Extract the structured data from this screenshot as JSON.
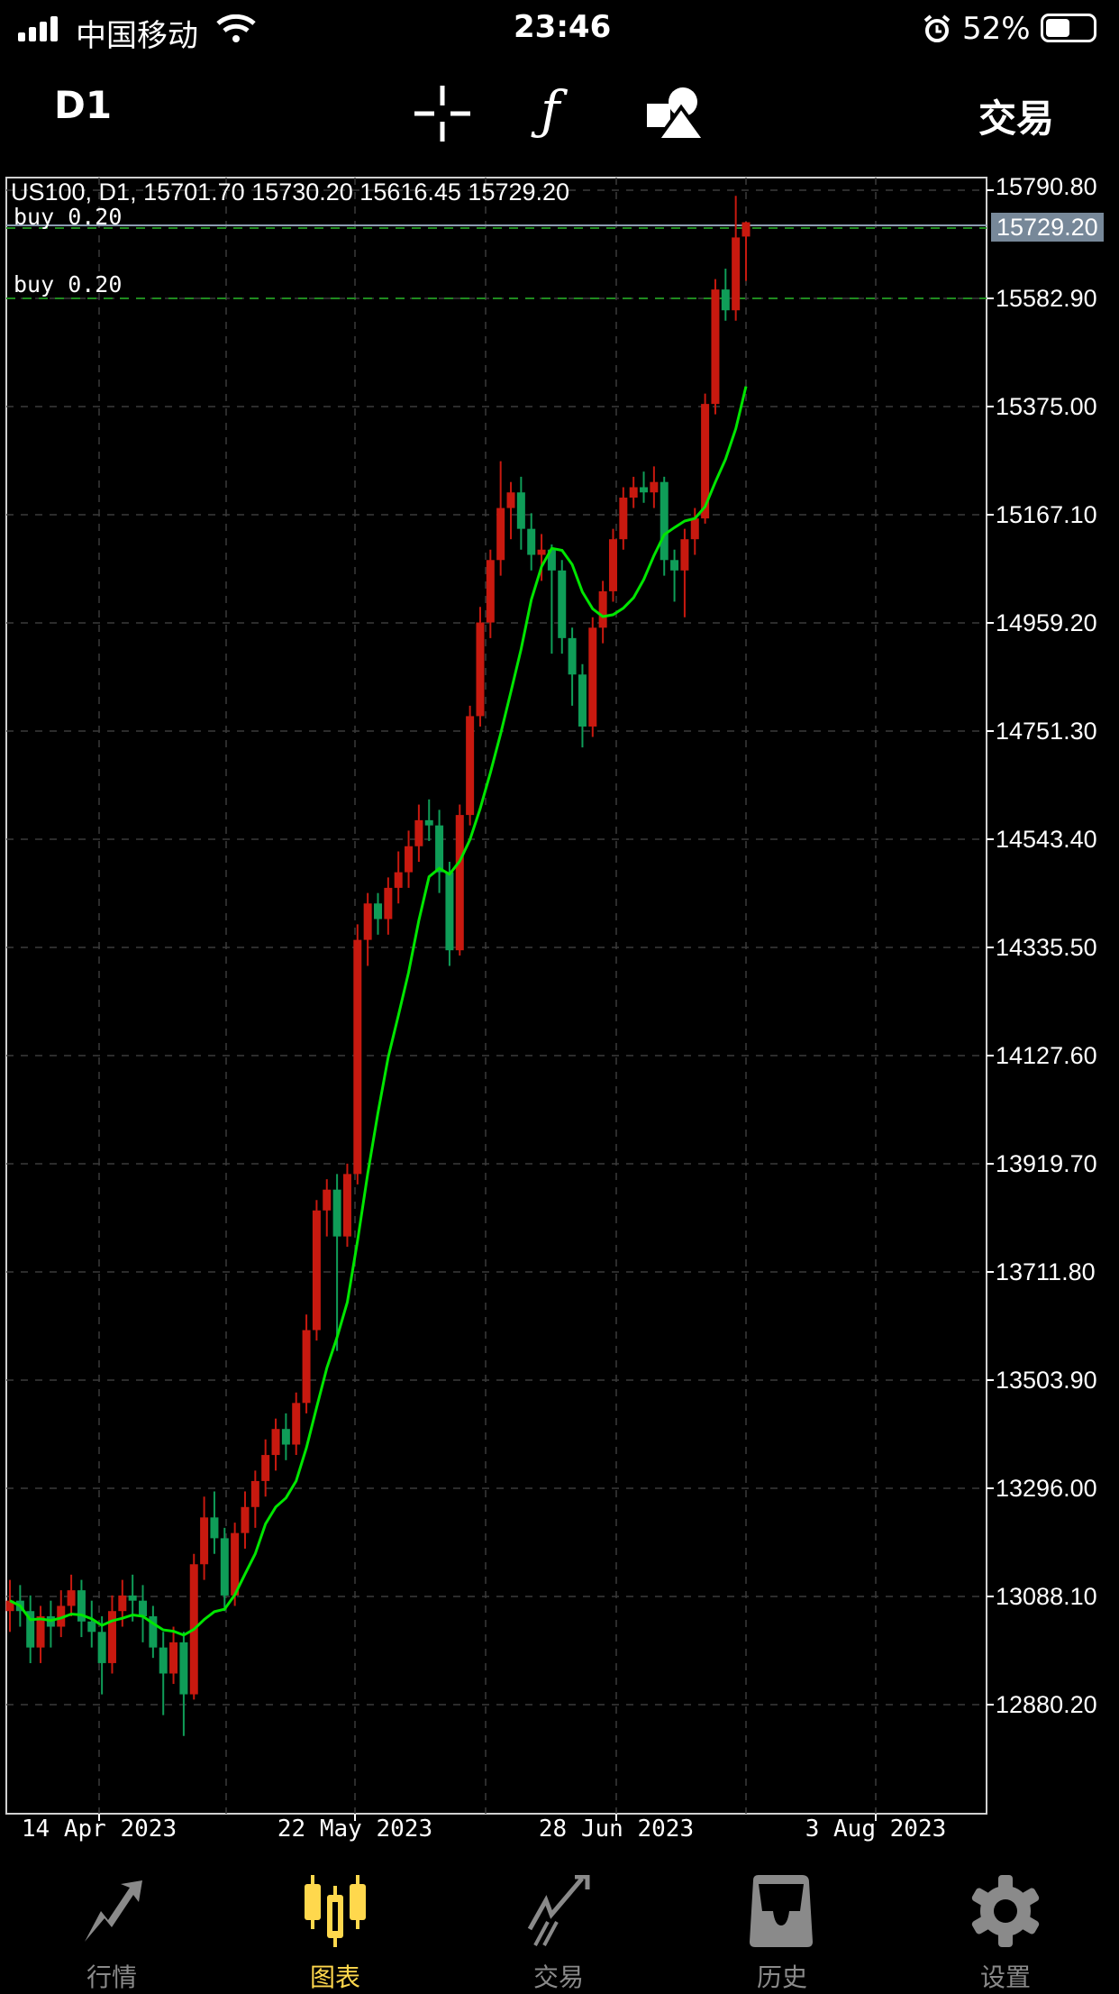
{
  "status_bar": {
    "carrier": "中国移动",
    "time": "23:46",
    "battery": "52%",
    "battery_level": 52
  },
  "toolbar": {
    "timeframe": "D1",
    "trade_label": "交易",
    "icons": [
      "crosshair-icon",
      "function-icon",
      "objects-icon"
    ]
  },
  "chart": {
    "info_line": "US100, D1, 15701.70 15730.20 15616.45 15729.20",
    "orders": [
      {
        "label": "buy 0.20",
        "price": 15729.2
      },
      {
        "label": "buy 0.20",
        "price": 15582.9
      }
    ],
    "current_price": "15729.20",
    "current_price_value": 15729.2,
    "price_ticks": [
      "15790.80",
      "15582.90",
      "15375.00",
      "15167.10",
      "14959.20",
      "14751.30",
      "14543.40",
      "14335.50",
      "14127.60",
      "13919.70",
      "13711.80",
      "13503.90",
      "13296.00",
      "13088.10",
      "12880.20"
    ],
    "date_ticks": [
      "14 Apr 2023",
      "22 May 2023",
      "28 Jun 2023",
      "3 Aug 2023"
    ],
    "colors": {
      "up": "#c8190f",
      "down": "#0f9d58",
      "ma": "#00e600",
      "grid": "#3a3a3a",
      "order_line": "#1f8a1f",
      "price_line": "#8c9bb0",
      "price_box": "#778899"
    },
    "candles": [
      [
        13060,
        13120,
        13020,
        13080
      ],
      [
        13080,
        13110,
        13030,
        13060
      ],
      [
        13060,
        13090,
        12960,
        12990
      ],
      [
        12990,
        13070,
        12960,
        13050
      ],
      [
        13050,
        13080,
        12990,
        13030
      ],
      [
        13030,
        13100,
        13010,
        13070
      ],
      [
        13070,
        13130,
        13050,
        13100
      ],
      [
        13100,
        13120,
        13010,
        13040
      ],
      [
        13040,
        13080,
        12990,
        13020
      ],
      [
        13020,
        13050,
        12900,
        12960
      ],
      [
        12960,
        13090,
        12940,
        13060
      ],
      [
        13060,
        13120,
        13030,
        13090
      ],
      [
        13090,
        13130,
        13040,
        13080
      ],
      [
        13080,
        13110,
        13000,
        13050
      ],
      [
        13050,
        13070,
        12970,
        12990
      ],
      [
        12990,
        13020,
        12860,
        12940
      ],
      [
        12940,
        13030,
        12920,
        13000
      ],
      [
        13000,
        13020,
        12820,
        12900
      ],
      [
        12900,
        13170,
        12890,
        13150
      ],
      [
        13150,
        13280,
        13120,
        13240
      ],
      [
        13240,
        13290,
        13170,
        13200
      ],
      [
        13200,
        13220,
        13060,
        13090
      ],
      [
        13090,
        13230,
        13070,
        13210
      ],
      [
        13210,
        13290,
        13180,
        13260
      ],
      [
        13260,
        13330,
        13220,
        13310
      ],
      [
        13310,
        13390,
        13280,
        13360
      ],
      [
        13360,
        13430,
        13330,
        13410
      ],
      [
        13410,
        13440,
        13350,
        13380
      ],
      [
        13380,
        13480,
        13360,
        13460
      ],
      [
        13460,
        13630,
        13440,
        13600
      ],
      [
        13600,
        13850,
        13580,
        13830
      ],
      [
        13830,
        13890,
        13780,
        13870
      ],
      [
        13870,
        13900,
        13560,
        13780
      ],
      [
        13780,
        13920,
        13760,
        13900
      ],
      [
        13900,
        14380,
        13880,
        14350
      ],
      [
        14350,
        14440,
        14300,
        14420
      ],
      [
        14420,
        14440,
        14360,
        14390
      ],
      [
        14390,
        14470,
        14360,
        14450
      ],
      [
        14450,
        14520,
        14420,
        14480
      ],
      [
        14480,
        14560,
        14450,
        14530
      ],
      [
        14530,
        14610,
        14500,
        14580
      ],
      [
        14580,
        14620,
        14540,
        14570
      ],
      [
        14570,
        14600,
        14440,
        14480
      ],
      [
        14480,
        14500,
        14300,
        14330
      ],
      [
        14330,
        14610,
        14320,
        14590
      ],
      [
        14590,
        14800,
        14570,
        14780
      ],
      [
        14780,
        14990,
        14760,
        14960
      ],
      [
        14960,
        15100,
        14930,
        15080
      ],
      [
        15080,
        15270,
        15050,
        15180
      ],
      [
        15180,
        15230,
        15120,
        15210
      ],
      [
        15210,
        15240,
        15100,
        15140
      ],
      [
        15140,
        15170,
        15060,
        15090
      ],
      [
        15090,
        15130,
        15040,
        15100
      ],
      [
        15100,
        15110,
        14900,
        15060
      ],
      [
        15060,
        15080,
        14900,
        14930
      ],
      [
        14930,
        14950,
        14800,
        14860
      ],
      [
        14860,
        14880,
        14720,
        14760
      ],
      [
        14760,
        14970,
        14740,
        14950
      ],
      [
        14950,
        15040,
        14920,
        15020
      ],
      [
        15020,
        15140,
        15000,
        15120
      ],
      [
        15120,
        15220,
        15100,
        15200
      ],
      [
        15200,
        15240,
        15180,
        15220
      ],
      [
        15220,
        15250,
        15190,
        15210
      ],
      [
        15210,
        15260,
        15180,
        15230
      ],
      [
        15230,
        15240,
        15050,
        15080
      ],
      [
        15080,
        15100,
        15000,
        15060
      ],
      [
        15060,
        15140,
        14970,
        15120
      ],
      [
        15120,
        15180,
        15090,
        15160
      ],
      [
        15160,
        15400,
        15150,
        15380
      ],
      [
        15380,
        15620,
        15360,
        15600
      ],
      [
        15600,
        15640,
        15540,
        15560
      ],
      [
        15560,
        15780,
        15540,
        15700
      ],
      [
        15701.7,
        15730.2,
        15616.45,
        15729.2
      ]
    ]
  },
  "bottom_nav": [
    {
      "label": "行情",
      "icon": "quotes-arrows-icon",
      "active": false
    },
    {
      "label": "图表",
      "icon": "candlestick-chart-icon",
      "active": true
    },
    {
      "label": "交易",
      "icon": "trade-trend-icon",
      "active": false
    },
    {
      "label": "历史",
      "icon": "history-inbox-icon",
      "active": false
    },
    {
      "label": "设置",
      "icon": "settings-gear-icon",
      "active": false
    }
  ]
}
